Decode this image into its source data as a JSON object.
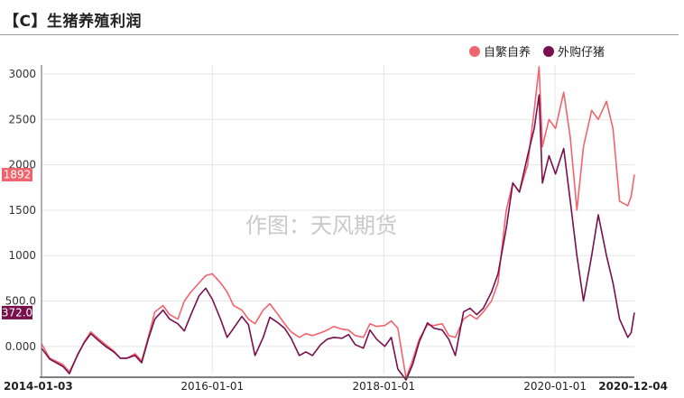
{
  "header": {
    "title": "【C】生猪养殖利润"
  },
  "watermark": "作图：天风期货",
  "chart_data": {
    "type": "line",
    "title": "【C】生猪养殖利润",
    "xlabel": "",
    "ylabel": "",
    "ylim": [
      -300,
      3100
    ],
    "yticks": [
      "3000",
      "2500",
      "2000",
      "1500",
      "1000",
      "500.0",
      "0.000"
    ],
    "ytick_values": [
      3000,
      2500,
      2000,
      1500,
      1000,
      500,
      0
    ],
    "xticks": [
      "2014-01-03",
      "2016-01-01",
      "2018-01-01",
      "2020-01-01",
      "2020-12-04"
    ],
    "xtick_dates": [
      "2014-01-03",
      "2016-01-01",
      "2018-01-01",
      "2020-01-01",
      "2020-12-04"
    ],
    "grid": true,
    "legend_position": "top-right",
    "series": [
      {
        "name": "自繁自养",
        "color": "#f0646e",
        "last_value_label": "1892",
        "x": [
          "2014-01-03",
          "2014-02-07",
          "2014-04-04",
          "2014-05-02",
          "2014-06-06",
          "2014-07-04",
          "2014-08-01",
          "2014-09-05",
          "2014-10-03",
          "2014-11-07",
          "2014-12-05",
          "2015-01-02",
          "2015-02-06",
          "2015-03-06",
          "2015-04-03",
          "2015-05-01",
          "2015-06-05",
          "2015-07-03",
          "2015-08-07",
          "2015-09-04",
          "2015-10-02",
          "2015-11-06",
          "2015-12-04",
          "2016-01-01",
          "2016-02-05",
          "2016-03-04",
          "2016-04-01",
          "2016-05-06",
          "2016-06-03",
          "2016-07-01",
          "2016-08-05",
          "2016-09-02",
          "2016-10-07",
          "2016-11-04",
          "2016-12-02",
          "2017-01-06",
          "2017-02-03",
          "2017-03-03",
          "2017-04-07",
          "2017-05-05",
          "2017-06-02",
          "2017-07-07",
          "2017-08-04",
          "2017-09-01",
          "2017-10-06",
          "2017-11-03",
          "2017-12-01",
          "2018-01-05",
          "2018-02-02",
          "2018-03-02",
          "2018-04-06",
          "2018-05-04",
          "2018-06-01",
          "2018-07-06",
          "2018-08-03",
          "2018-09-07",
          "2018-10-05",
          "2018-11-02",
          "2018-12-07",
          "2019-01-04",
          "2019-02-01",
          "2019-03-01",
          "2019-04-05",
          "2019-05-03",
          "2019-06-07",
          "2019-07-05",
          "2019-08-02",
          "2019-09-06",
          "2019-10-04",
          "2019-10-25",
          "2019-11-08",
          "2019-11-22",
          "2019-12-06",
          "2020-01-03",
          "2020-02-07",
          "2020-03-06",
          "2020-04-03",
          "2020-05-01",
          "2020-06-05",
          "2020-07-03",
          "2020-08-07",
          "2020-09-04",
          "2020-10-02",
          "2020-11-06",
          "2020-11-20",
          "2020-12-04"
        ],
        "values": [
          30,
          -130,
          -200,
          -280,
          -100,
          50,
          160,
          80,
          20,
          -50,
          -130,
          -130,
          -80,
          -160,
          100,
          380,
          450,
          350,
          300,
          500,
          600,
          700,
          780,
          800,
          700,
          600,
          450,
          400,
          300,
          250,
          400,
          470,
          350,
          250,
          160,
          100,
          140,
          120,
          150,
          180,
          220,
          190,
          180,
          120,
          100,
          250,
          220,
          230,
          280,
          200,
          -350,
          -150,
          80,
          240,
          230,
          250,
          120,
          100,
          300,
          350,
          300,
          380,
          500,
          700,
          1500,
          1800,
          1700,
          2000,
          2600,
          3080,
          2200,
          2350,
          2500,
          2400,
          2800,
          2300,
          1500,
          2200,
          2600,
          2500,
          2700,
          2400,
          1600,
          1550,
          1650,
          1892
        ]
      },
      {
        "name": "外购仔猪",
        "color": "#78104e",
        "last_value_label": "372.0",
        "x": [
          "2014-01-03",
          "2014-02-07",
          "2014-04-04",
          "2014-05-02",
          "2014-06-06",
          "2014-07-04",
          "2014-08-01",
          "2014-09-05",
          "2014-10-03",
          "2014-11-07",
          "2014-12-05",
          "2015-01-02",
          "2015-02-06",
          "2015-03-06",
          "2015-04-03",
          "2015-05-01",
          "2015-06-05",
          "2015-07-03",
          "2015-08-07",
          "2015-09-04",
          "2015-10-02",
          "2015-11-06",
          "2015-12-04",
          "2016-01-01",
          "2016-02-05",
          "2016-03-04",
          "2016-04-01",
          "2016-05-06",
          "2016-06-03",
          "2016-07-01",
          "2016-08-05",
          "2016-09-02",
          "2016-10-07",
          "2016-11-04",
          "2016-12-02",
          "2017-01-06",
          "2017-02-03",
          "2017-03-03",
          "2017-04-07",
          "2017-05-05",
          "2017-06-02",
          "2017-07-07",
          "2017-08-04",
          "2017-09-01",
          "2017-10-06",
          "2017-11-03",
          "2017-12-01",
          "2018-01-05",
          "2018-02-02",
          "2018-03-02",
          "2018-04-06",
          "2018-05-04",
          "2018-06-01",
          "2018-07-06",
          "2018-08-03",
          "2018-09-07",
          "2018-10-05",
          "2018-11-02",
          "2018-12-07",
          "2019-01-04",
          "2019-02-01",
          "2019-03-01",
          "2019-04-05",
          "2019-05-03",
          "2019-06-07",
          "2019-07-05",
          "2019-08-02",
          "2019-09-06",
          "2019-10-04",
          "2019-10-25",
          "2019-11-08",
          "2019-11-22",
          "2019-12-06",
          "2020-01-03",
          "2020-02-07",
          "2020-03-06",
          "2020-04-03",
          "2020-05-01",
          "2020-06-05",
          "2020-07-03",
          "2020-08-07",
          "2020-09-04",
          "2020-10-02",
          "2020-11-06",
          "2020-11-20",
          "2020-12-04"
        ],
        "values": [
          -20,
          -140,
          -220,
          -300,
          -90,
          40,
          140,
          60,
          0,
          -60,
          -130,
          -130,
          -100,
          -180,
          80,
          300,
          400,
          300,
          250,
          170,
          350,
          560,
          640,
          520,
          300,
          100,
          200,
          330,
          240,
          -100,
          100,
          320,
          260,
          200,
          90,
          -100,
          -60,
          -100,
          20,
          80,
          100,
          90,
          130,
          20,
          -20,
          180,
          80,
          0,
          100,
          -250,
          -370,
          -200,
          50,
          260,
          200,
          180,
          80,
          -100,
          380,
          420,
          350,
          420,
          600,
          800,
          1300,
          1800,
          1700,
          2100,
          2400,
          2770,
          1800,
          1950,
          2100,
          1900,
          2180,
          1600,
          1000,
          500,
          1000,
          1450,
          1000,
          700,
          300,
          100,
          150,
          372
        ]
      }
    ]
  }
}
